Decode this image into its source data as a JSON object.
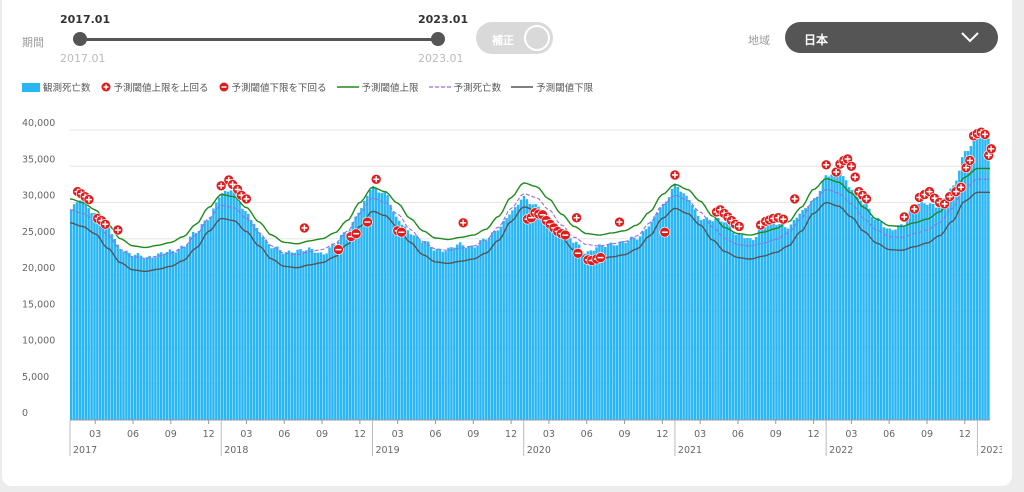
{
  "filters": {
    "period_label": "期間",
    "start_label": "2017.01",
    "end_label": "2023.01",
    "start_value": "2017.01",
    "end_value": "2023.01",
    "toggle_label": "補正",
    "region_label": "地域",
    "region_value": "日本"
  },
  "legend": [
    {
      "key": "observed",
      "label": "観測死亡数"
    },
    {
      "key": "above",
      "label": "予測閾値上限を上回る"
    },
    {
      "key": "below",
      "label": "予測閾値下限を下回る"
    },
    {
      "key": "upper",
      "label": "予測閾値上限"
    },
    {
      "key": "pred",
      "label": "予測死亡数"
    },
    {
      "key": "lower",
      "label": "予測閾値下限"
    }
  ],
  "colors": {
    "observed": "#29b6f6",
    "upper": "#1e8a1e",
    "pred": "#9c6cd8",
    "lower": "#555555",
    "above": "#e01b1b",
    "below": "#e01b1b"
  },
  "chart_data": {
    "type": "bar",
    "x_start": "2017-01",
    "x_end": "2023-01",
    "x_unit": "week",
    "ylim": [
      0,
      40000
    ],
    "y_ticks": [
      "0",
      "5,000",
      "10,000",
      "15,000",
      "20,000",
      "25,000",
      "30,000",
      "35,000",
      "40,000"
    ],
    "x_tick_labels": [
      "03",
      "06",
      "09",
      "12",
      "03",
      "06",
      "09",
      "12",
      "03",
      "06",
      "09",
      "12",
      "03",
      "06",
      "09",
      "12",
      "03",
      "06",
      "09",
      "12",
      "03",
      "06",
      "09",
      "12"
    ],
    "year_labels": [
      "2017",
      "2018",
      "2019",
      "2020",
      "2021",
      "2022",
      "2023"
    ],
    "predicted_anchors": [
      {
        "date": "2017-01",
        "value": 29000
      },
      {
        "date": "2017-02",
        "value": 28500
      },
      {
        "date": "2017-03",
        "value": 27500
      },
      {
        "date": "2017-04",
        "value": 25500
      },
      {
        "date": "2017-05",
        "value": 23500
      },
      {
        "date": "2017-06",
        "value": 22500
      },
      {
        "date": "2017-07",
        "value": 22300
      },
      {
        "date": "2017-08",
        "value": 22600
      },
      {
        "date": "2017-09",
        "value": 23000
      },
      {
        "date": "2017-10",
        "value": 23800
      },
      {
        "date": "2017-11",
        "value": 25500
      },
      {
        "date": "2017-12",
        "value": 27800
      },
      {
        "date": "2018-01",
        "value": 29600
      },
      {
        "date": "2018-02",
        "value": 29300
      },
      {
        "date": "2018-03",
        "value": 27800
      },
      {
        "date": "2018-04",
        "value": 25800
      },
      {
        "date": "2018-05",
        "value": 24000
      },
      {
        "date": "2018-06",
        "value": 23000
      },
      {
        "date": "2018-07",
        "value": 22800
      },
      {
        "date": "2018-08",
        "value": 23200
      },
      {
        "date": "2018-09",
        "value": 23500
      },
      {
        "date": "2018-10",
        "value": 24300
      },
      {
        "date": "2018-11",
        "value": 26000
      },
      {
        "date": "2018-12",
        "value": 28500
      },
      {
        "date": "2019-01",
        "value": 30600
      },
      {
        "date": "2019-02",
        "value": 30000
      },
      {
        "date": "2019-03",
        "value": 28400
      },
      {
        "date": "2019-04",
        "value": 26300
      },
      {
        "date": "2019-05",
        "value": 24600
      },
      {
        "date": "2019-06",
        "value": 23600
      },
      {
        "date": "2019-07",
        "value": 23400
      },
      {
        "date": "2019-08",
        "value": 23700
      },
      {
        "date": "2019-09",
        "value": 24000
      },
      {
        "date": "2019-10",
        "value": 24800
      },
      {
        "date": "2019-11",
        "value": 26600
      },
      {
        "date": "2019-12",
        "value": 29200
      },
      {
        "date": "2020-01",
        "value": 31200
      },
      {
        "date": "2020-02",
        "value": 30700
      },
      {
        "date": "2020-03",
        "value": 29000
      },
      {
        "date": "2020-04",
        "value": 26900
      },
      {
        "date": "2020-05",
        "value": 25200
      },
      {
        "date": "2020-06",
        "value": 24200
      },
      {
        "date": "2020-07",
        "value": 24000
      },
      {
        "date": "2020-08",
        "value": 24300
      },
      {
        "date": "2020-09",
        "value": 24600
      },
      {
        "date": "2020-10",
        "value": 25400
      },
      {
        "date": "2020-11",
        "value": 27200
      },
      {
        "date": "2020-12",
        "value": 29600
      },
      {
        "date": "2021-01",
        "value": 31000
      },
      {
        "date": "2021-02",
        "value": 30300
      },
      {
        "date": "2021-03",
        "value": 28700
      },
      {
        "date": "2021-04",
        "value": 26600
      },
      {
        "date": "2021-05",
        "value": 25000
      },
      {
        "date": "2021-06",
        "value": 24200
      },
      {
        "date": "2021-07",
        "value": 24000
      },
      {
        "date": "2021-08",
        "value": 24400
      },
      {
        "date": "2021-09",
        "value": 24900
      },
      {
        "date": "2021-10",
        "value": 25800
      },
      {
        "date": "2021-11",
        "value": 27800
      },
      {
        "date": "2021-12",
        "value": 30300
      },
      {
        "date": "2022-01",
        "value": 31800
      },
      {
        "date": "2022-02",
        "value": 31300
      },
      {
        "date": "2022-03",
        "value": 29800
      },
      {
        "date": "2022-04",
        "value": 27800
      },
      {
        "date": "2022-05",
        "value": 26200
      },
      {
        "date": "2022-06",
        "value": 25300
      },
      {
        "date": "2022-07",
        "value": 25200
      },
      {
        "date": "2022-08",
        "value": 25700
      },
      {
        "date": "2022-09",
        "value": 26200
      },
      {
        "date": "2022-10",
        "value": 27200
      },
      {
        "date": "2022-11",
        "value": 29200
      },
      {
        "date": "2022-12",
        "value": 32000
      },
      {
        "date": "2023-01",
        "value": 33200
      }
    ],
    "upper_offset": 1500,
    "lower_offset": 1800,
    "observed_anchors": [
      {
        "date": "2017-01",
        "value": 29000
      },
      {
        "date": "2017-02",
        "value": 30500
      },
      {
        "date": "2017-03",
        "value": 28500
      },
      {
        "date": "2017-04",
        "value": 26500
      },
      {
        "date": "2017-05",
        "value": 23800
      },
      {
        "date": "2017-06",
        "value": 22700
      },
      {
        "date": "2017-07",
        "value": 22500
      },
      {
        "date": "2017-08",
        "value": 22800
      },
      {
        "date": "2017-09",
        "value": 23200
      },
      {
        "date": "2017-10",
        "value": 24000
      },
      {
        "date": "2017-11",
        "value": 25800
      },
      {
        "date": "2017-12",
        "value": 28000
      },
      {
        "date": "2018-01",
        "value": 31000
      },
      {
        "date": "2018-02",
        "value": 32000
      },
      {
        "date": "2018-03",
        "value": 28500
      },
      {
        "date": "2018-04",
        "value": 26000
      },
      {
        "date": "2018-05",
        "value": 24000
      },
      {
        "date": "2018-06",
        "value": 23000
      },
      {
        "date": "2018-07",
        "value": 23500
      },
      {
        "date": "2018-08",
        "value": 23400
      },
      {
        "date": "2018-09",
        "value": 23000
      },
      {
        "date": "2018-10",
        "value": 24200
      },
      {
        "date": "2018-11",
        "value": 26000
      },
      {
        "date": "2018-12",
        "value": 29000
      },
      {
        "date": "2019-01",
        "value": 32000
      },
      {
        "date": "2019-02",
        "value": 31500
      },
      {
        "date": "2019-03",
        "value": 27500
      },
      {
        "date": "2019-04",
        "value": 26000
      },
      {
        "date": "2019-05",
        "value": 24600
      },
      {
        "date": "2019-06",
        "value": 23600
      },
      {
        "date": "2019-07",
        "value": 23500
      },
      {
        "date": "2019-08",
        "value": 24200
      },
      {
        "date": "2019-09",
        "value": 24000
      },
      {
        "date": "2019-10",
        "value": 24800
      },
      {
        "date": "2019-11",
        "value": 26600
      },
      {
        "date": "2019-12",
        "value": 28500
      },
      {
        "date": "2020-01",
        "value": 30800
      },
      {
        "date": "2020-02",
        "value": 29500
      },
      {
        "date": "2020-03",
        "value": 28000
      },
      {
        "date": "2020-04",
        "value": 26500
      },
      {
        "date": "2020-05",
        "value": 24500
      },
      {
        "date": "2020-06",
        "value": 23200
      },
      {
        "date": "2020-07",
        "value": 23800
      },
      {
        "date": "2020-08",
        "value": 24400
      },
      {
        "date": "2020-09",
        "value": 24500
      },
      {
        "date": "2020-10",
        "value": 25200
      },
      {
        "date": "2020-11",
        "value": 27000
      },
      {
        "date": "2020-12",
        "value": 29500
      },
      {
        "date": "2021-01",
        "value": 32500
      },
      {
        "date": "2021-02",
        "value": 30500
      },
      {
        "date": "2021-03",
        "value": 28000
      },
      {
        "date": "2021-04",
        "value": 27500
      },
      {
        "date": "2021-05",
        "value": 27500
      },
      {
        "date": "2021-06",
        "value": 25500
      },
      {
        "date": "2021-07",
        "value": 24800
      },
      {
        "date": "2021-08",
        "value": 26800
      },
      {
        "date": "2021-09",
        "value": 27000
      },
      {
        "date": "2021-10",
        "value": 26800
      },
      {
        "date": "2021-11",
        "value": 28500
      },
      {
        "date": "2021-12",
        "value": 30500
      },
      {
        "date": "2022-01",
        "value": 33500
      },
      {
        "date": "2022-02",
        "value": 34500
      },
      {
        "date": "2022-03",
        "value": 32000
      },
      {
        "date": "2022-04",
        "value": 29800
      },
      {
        "date": "2022-05",
        "value": 27800
      },
      {
        "date": "2022-06",
        "value": 26000
      },
      {
        "date": "2022-07",
        "value": 27000
      },
      {
        "date": "2022-08",
        "value": 29500
      },
      {
        "date": "2022-09",
        "value": 30000
      },
      {
        "date": "2022-10",
        "value": 29500
      },
      {
        "date": "2022-11",
        "value": 32000
      },
      {
        "date": "2022-12",
        "value": 37000
      },
      {
        "date": "2023-01",
        "value": 39000
      }
    ],
    "above_points": [
      {
        "date": "2017-01.6",
        "value": 31500
      },
      {
        "date": "2017-01.9",
        "value": 31200
      },
      {
        "date": "2017-02.2",
        "value": 30800
      },
      {
        "date": "2017-02.5",
        "value": 30400
      },
      {
        "date": "2017-03.2",
        "value": 27800
      },
      {
        "date": "2017-03.5",
        "value": 27500
      },
      {
        "date": "2017-03.8",
        "value": 27000
      },
      {
        "date": "2017-04.8",
        "value": 26200
      },
      {
        "date": "2018-01.0",
        "value": 32300
      },
      {
        "date": "2018-01.6",
        "value": 33100
      },
      {
        "date": "2018-01.9",
        "value": 32500
      },
      {
        "date": "2018-02.3",
        "value": 31800
      },
      {
        "date": "2018-02.6",
        "value": 31000
      },
      {
        "date": "2018-03.0",
        "value": 30500
      },
      {
        "date": "2018-07.6",
        "value": 26500
      },
      {
        "date": "2019-01.3",
        "value": 33200
      },
      {
        "date": "2019-08.2",
        "value": 27200
      },
      {
        "date": "2020-05.2",
        "value": 27900
      },
      {
        "date": "2020-08.6",
        "value": 27300
      },
      {
        "date": "2021-01.0",
        "value": 33800
      },
      {
        "date": "2021-04.3",
        "value": 28700
      },
      {
        "date": "2021-04.6",
        "value": 29000
      },
      {
        "date": "2021-04.9",
        "value": 28500
      },
      {
        "date": "2021-05.2",
        "value": 28000
      },
      {
        "date": "2021-05.5",
        "value": 27500
      },
      {
        "date": "2021-05.8",
        "value": 27000
      },
      {
        "date": "2021-06.1",
        "value": 26700
      },
      {
        "date": "2021-07.8",
        "value": 26900
      },
      {
        "date": "2021-08.2",
        "value": 27400
      },
      {
        "date": "2021-08.5",
        "value": 27600
      },
      {
        "date": "2021-08.8",
        "value": 27800
      },
      {
        "date": "2021-09.2",
        "value": 27900
      },
      {
        "date": "2021-09.6",
        "value": 27700
      },
      {
        "date": "2021-10.5",
        "value": 30500
      },
      {
        "date": "2022-01.0",
        "value": 35200
      },
      {
        "date": "2022-01.8",
        "value": 34200
      },
      {
        "date": "2022-02.1",
        "value": 35300
      },
      {
        "date": "2022-02.4",
        "value": 35800
      },
      {
        "date": "2022-02.7",
        "value": 36000
      },
      {
        "date": "2022-03.0",
        "value": 35000
      },
      {
        "date": "2022-03.3",
        "value": 33500
      },
      {
        "date": "2022-03.6",
        "value": 31500
      },
      {
        "date": "2022-03.9",
        "value": 31000
      },
      {
        "date": "2022-04.2",
        "value": 30500
      },
      {
        "date": "2022-07.2",
        "value": 28000
      },
      {
        "date": "2022-08.0",
        "value": 29100
      },
      {
        "date": "2022-08.4",
        "value": 30700
      },
      {
        "date": "2022-08.8",
        "value": 31100
      },
      {
        "date": "2022-09.2",
        "value": 31500
      },
      {
        "date": "2022-09.6",
        "value": 30600
      },
      {
        "date": "2022-10.0",
        "value": 30000
      },
      {
        "date": "2022-10.4",
        "value": 29800
      },
      {
        "date": "2022-10.8",
        "value": 30800
      },
      {
        "date": "2022-11.3",
        "value": 31500
      },
      {
        "date": "2022-11.7",
        "value": 32100
      },
      {
        "date": "2022-12.1",
        "value": 34800
      },
      {
        "date": "2022-12.4",
        "value": 35800
      },
      {
        "date": "2022-12.7",
        "value": 39200
      },
      {
        "date": "2023-01.0",
        "value": 39500
      },
      {
        "date": "2023-01.3",
        "value": 39700
      },
      {
        "date": "2023-01.6",
        "value": 39400
      },
      {
        "date": "2023-01.9",
        "value": 36500
      },
      {
        "date": "2023-02.1",
        "value": 37400
      }
    ],
    "below_points": [
      {
        "date": "2018-10.3",
        "value": 23500
      },
      {
        "date": "2018-11.3",
        "value": 25300
      },
      {
        "date": "2018-11.7",
        "value": 25700
      },
      {
        "date": "2018-12.6",
        "value": 27300
      },
      {
        "date": "2019-03.0",
        "value": 26100
      },
      {
        "date": "2019-03.3",
        "value": 25900
      },
      {
        "date": "2020-01.3",
        "value": 27700
      },
      {
        "date": "2020-01.6",
        "value": 27900
      },
      {
        "date": "2020-01.9",
        "value": 28600
      },
      {
        "date": "2020-02.2",
        "value": 28400
      },
      {
        "date": "2020-02.5",
        "value": 28300
      },
      {
        "date": "2020-02.8",
        "value": 27500
      },
      {
        "date": "2020-03.1",
        "value": 27000
      },
      {
        "date": "2020-03.4",
        "value": 26500
      },
      {
        "date": "2020-03.7",
        "value": 26000
      },
      {
        "date": "2020-04.0",
        "value": 25700
      },
      {
        "date": "2020-04.3",
        "value": 25500
      },
      {
        "date": "2020-05.3",
        "value": 23000
      },
      {
        "date": "2020-06.1",
        "value": 22100
      },
      {
        "date": "2020-06.4",
        "value": 22000
      },
      {
        "date": "2020-06.8",
        "value": 22200
      },
      {
        "date": "2020-07.1",
        "value": 22400
      },
      {
        "date": "2020-12.2",
        "value": 25900
      }
    ]
  }
}
